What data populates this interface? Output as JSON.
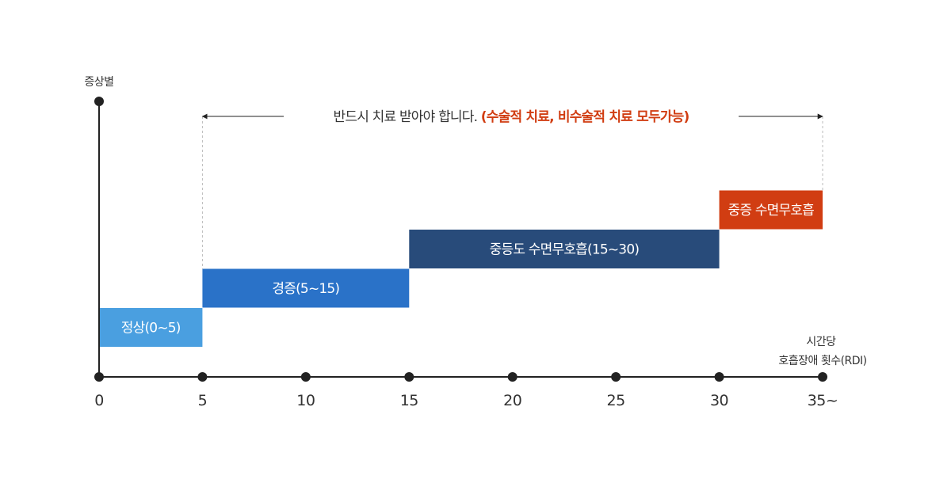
{
  "chart_data": {
    "type": "bar",
    "ylabel": "증상별",
    "xlabel": [
      "시간당",
      "호흡장애 횟수(RDI)"
    ],
    "x_ticks": [
      "0",
      "5",
      "10",
      "15",
      "20",
      "25",
      "30",
      "35~"
    ],
    "x_values": [
      0,
      5,
      10,
      15,
      20,
      25,
      30,
      35
    ],
    "xlim": [
      0,
      35
    ],
    "y_levels": 4,
    "grid": false,
    "legend": "none",
    "stages": [
      {
        "label": "정상(0~5)",
        "start": 0,
        "end": 5,
        "level": 1,
        "color": "#4a9fe0"
      },
      {
        "label": "경증(5~15)",
        "start": 5,
        "end": 15,
        "level": 2,
        "color": "#2a72c8"
      },
      {
        "label": "중등도 수면무호흡(15~30)",
        "start": 15,
        "end": 30,
        "level": 3,
        "color": "#284b7a"
      },
      {
        "label": "중증 수면무호흡",
        "start": 30,
        "end": 35,
        "level": 4,
        "color": "#d13d12"
      }
    ],
    "annotation": {
      "text": "반드시 치료 받아야 합니다.",
      "highlight": "(수술적 치료, 비수술적 치료 모두가능)",
      "highlight_color": "#d13d12",
      "range": [
        5,
        35
      ]
    }
  },
  "colors": {
    "axis": "#222222",
    "text": "#333333",
    "guide": "#bbbbbb"
  }
}
